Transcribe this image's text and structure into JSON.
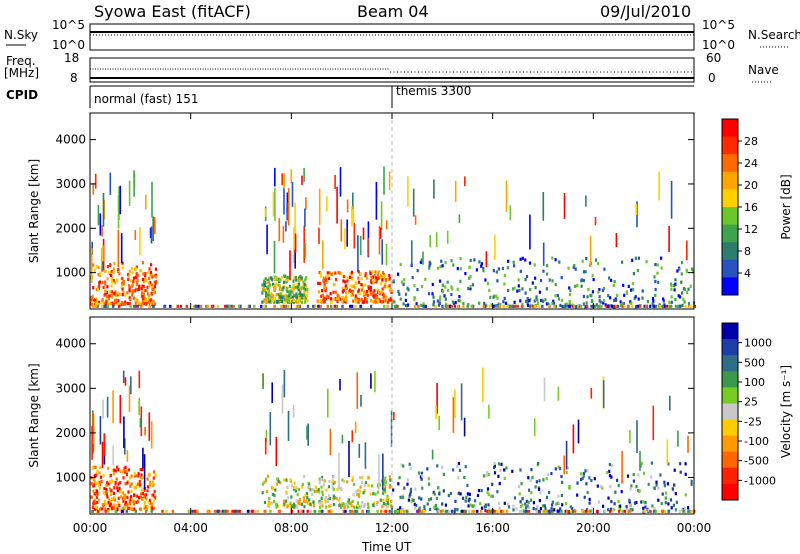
{
  "header": {
    "station": "Syowa East (fitACF)",
    "beam": "Beam 04",
    "date": "09/Jul/2010"
  },
  "noise_panel": {
    "left_label": "N.Sky",
    "right_label": "N.Search",
    "tick_high": "10^5",
    "tick_low": "10^0"
  },
  "freq_panel": {
    "left_label_top": "Freq.",
    "left_label_bottom": "[MHz]",
    "left_ticks": [
      "18",
      "8"
    ],
    "right_label": "Nave",
    "right_ticks": [
      "60",
      "0"
    ]
  },
  "cpid_panel": {
    "label": "CPID",
    "segments": [
      {
        "start_hour": 0,
        "name": "normal (fast) 151"
      },
      {
        "start_hour": 12,
        "name": "themis 3300"
      }
    ]
  },
  "colors": {
    "power_scale": [
      "#0000ff",
      "#2a52be",
      "#2e7d6b",
      "#3fa34d",
      "#6cc82a",
      "#ffd000",
      "#ffa500",
      "#ff6a00",
      "#ff2a00",
      "#ff0000"
    ],
    "velocity_scale": [
      "#0000aa",
      "#1e3fa8",
      "#2e6d87",
      "#3a9a4a",
      "#77cc22",
      "#c8c8c8",
      "#ffcc00",
      "#ff9900",
      "#ff6600",
      "#ff2200",
      "#ff0000"
    ]
  },
  "chart_data": [
    {
      "type": "heatmap",
      "name": "power",
      "ylabel": "Slant Range [km]",
      "xlabel": "Time UT",
      "x_ticks": [
        "00:00",
        "04:00",
        "08:00",
        "12:00",
        "16:00",
        "20:00",
        "00:00"
      ],
      "y_ticks": [
        1000,
        2000,
        3000,
        4000
      ],
      "xlim": [
        0,
        24
      ],
      "ylim": [
        180,
        4600
      ],
      "colorbar": {
        "label": "Power [dB]",
        "ticks": [
          "4",
          "8",
          "12",
          "16",
          "20",
          "24",
          "28"
        ],
        "range": [
          0,
          30
        ]
      },
      "echo_regions": [
        {
          "t0": 0.0,
          "t1": 2.6,
          "r0": 250,
          "r1": 1200,
          "level": "high"
        },
        {
          "t0": 6.8,
          "t1": 8.6,
          "r0": 300,
          "r1": 900,
          "level": "mid"
        },
        {
          "t0": 9.0,
          "t1": 12.0,
          "r0": 300,
          "r1": 1000,
          "level": "high"
        },
        {
          "t0": 12.0,
          "t1": 24.0,
          "r0": 200,
          "r1": 1300,
          "level": "low"
        }
      ]
    },
    {
      "type": "heatmap",
      "name": "velocity",
      "ylabel": "Slant Range [km]",
      "xlabel": "Time UT",
      "x_ticks": [
        "00:00",
        "04:00",
        "08:00",
        "12:00",
        "16:00",
        "20:00",
        "00:00"
      ],
      "y_ticks": [
        1000,
        2000,
        3000,
        4000
      ],
      "xlim": [
        0,
        24
      ],
      "ylim": [
        180,
        4600
      ],
      "colorbar": {
        "label": "Velocity [m s⁻¹]",
        "ticks": [
          "1000",
          "500",
          "100",
          "25",
          "-25",
          "-100",
          "-500",
          "-1000"
        ],
        "range": [
          -1000,
          1000
        ]
      },
      "echo_regions": [
        {
          "t0": 0.0,
          "t1": 2.6,
          "r0": 250,
          "r1": 1200,
          "level": "negative"
        },
        {
          "t0": 6.8,
          "t1": 12.0,
          "r0": 300,
          "r1": 1000,
          "level": "mixed"
        },
        {
          "t0": 12.0,
          "t1": 24.0,
          "r0": 200,
          "r1": 1300,
          "level": "positive"
        }
      ]
    }
  ]
}
